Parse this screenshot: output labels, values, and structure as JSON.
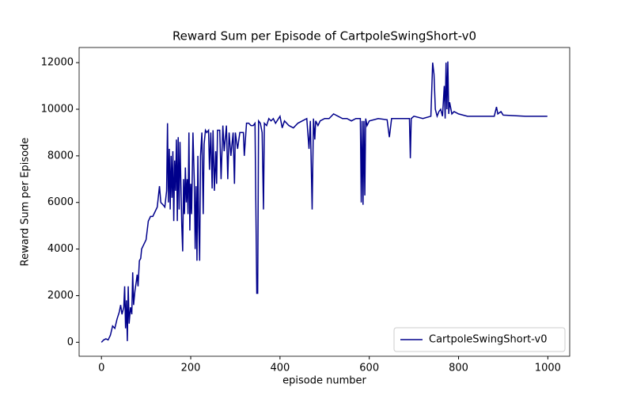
{
  "chart_data": {
    "type": "line",
    "title": "Reward Sum per Episode of CartpoleSwingShort-v0",
    "x_label": "episode number",
    "y_label": "Reward Sum per Episode",
    "legend": "lower right",
    "grid": false,
    "xlim": [
      -50,
      1049
    ],
    "ylim": [
      -600,
      12650
    ],
    "xticks": [
      0,
      200,
      400,
      600,
      800,
      1000
    ],
    "yticks": [
      0,
      2000,
      4000,
      6000,
      8000,
      10000,
      12000
    ],
    "x": [
      0,
      5,
      10,
      15,
      20,
      25,
      30,
      35,
      40,
      43,
      46,
      50,
      52,
      54,
      56,
      58,
      60,
      62,
      65,
      68,
      70,
      72,
      75,
      78,
      80,
      82,
      85,
      88,
      90,
      95,
      100,
      105,
      110,
      115,
      120,
      125,
      130,
      133,
      138,
      142,
      146,
      148,
      150,
      152,
      154,
      156,
      158,
      160,
      162,
      164,
      166,
      168,
      170,
      172,
      174,
      176,
      180,
      182,
      184,
      186,
      188,
      190,
      192,
      194,
      196,
      198,
      200,
      202,
      205,
      208,
      210,
      212,
      214,
      216,
      218,
      220,
      222,
      225,
      228,
      230,
      233,
      236,
      240,
      242,
      245,
      248,
      250,
      253,
      256,
      258,
      260,
      265,
      268,
      272,
      275,
      280,
      283,
      286,
      290,
      295,
      298,
      300,
      305,
      310,
      318,
      320,
      325,
      330,
      335,
      340,
      344,
      348,
      350,
      352,
      356,
      360,
      363,
      365,
      370,
      375,
      380,
      385,
      390,
      400,
      405,
      410,
      420,
      430,
      440,
      450,
      460,
      465,
      468,
      472,
      475,
      478,
      480,
      485,
      490,
      500,
      510,
      520,
      530,
      540,
      550,
      560,
      570,
      580,
      582,
      584,
      586,
      588,
      590,
      592,
      595,
      600,
      620,
      640,
      645,
      650,
      670,
      690,
      692,
      694,
      700,
      720,
      738,
      742,
      745,
      748,
      752,
      756,
      760,
      764,
      768,
      770,
      772,
      774,
      776,
      778,
      780,
      785,
      790,
      800,
      820,
      850,
      880,
      885,
      888,
      895,
      900,
      950,
      999
    ],
    "series": [
      {
        "name": "CartpoleSwingShort-v0",
        "color": "#00008b",
        "values": [
          0,
          100,
          150,
          100,
          300,
          700,
          600,
          1000,
          1300,
          1600,
          1200,
          1500,
          2400,
          600,
          1800,
          50,
          2400,
          800,
          1500,
          1200,
          3000,
          1600,
          2200,
          2600,
          2900,
          2400,
          3500,
          3600,
          4000,
          4200,
          4400,
          5200,
          5400,
          5400,
          5600,
          5800,
          6700,
          6000,
          5900,
          5800,
          6500,
          9400,
          6000,
          8300,
          5700,
          8000,
          6200,
          8200,
          5200,
          7800,
          6500,
          8700,
          5200,
          8800,
          5700,
          8600,
          5000,
          3900,
          7000,
          5500,
          7500,
          6000,
          7000,
          5500,
          9000,
          4800,
          6800,
          5500,
          9000,
          6900,
          4000,
          6700,
          3500,
          8000,
          5000,
          3500,
          8000,
          9000,
          5500,
          8500,
          9100,
          9000,
          9100,
          7400,
          9000,
          6600,
          9100,
          6500,
          8200,
          6800,
          9100,
          9100,
          7000,
          9300,
          8200,
          9300,
          7000,
          9000,
          8000,
          9000,
          6800,
          9000,
          8300,
          9000,
          9000,
          8000,
          9400,
          9400,
          9300,
          9300,
          9400,
          2100,
          2100,
          9500,
          9400,
          9000,
          5700,
          9400,
          9300,
          9600,
          9500,
          9600,
          9400,
          9700,
          9200,
          9500,
          9300,
          9200,
          9400,
          9500,
          9600,
          8300,
          9500,
          5700,
          9600,
          8700,
          9500,
          9300,
          9500,
          9600,
          9600,
          9800,
          9700,
          9600,
          9600,
          9500,
          9600,
          9600,
          6000,
          9500,
          5900,
          9500,
          6300,
          9600,
          9300,
          9500,
          9600,
          9550,
          8800,
          9600,
          9600,
          9600,
          7900,
          9600,
          9700,
          9600,
          9700,
          12000,
          11500,
          10000,
          9700,
          9900,
          10000,
          9700,
          11000,
          9600,
          12000,
          10000,
          12050,
          9800,
          10300,
          9800,
          9900,
          9800,
          9700,
          9700,
          9700,
          10100,
          9800,
          9900,
          9750,
          9700,
          9700
        ]
      }
    ]
  }
}
